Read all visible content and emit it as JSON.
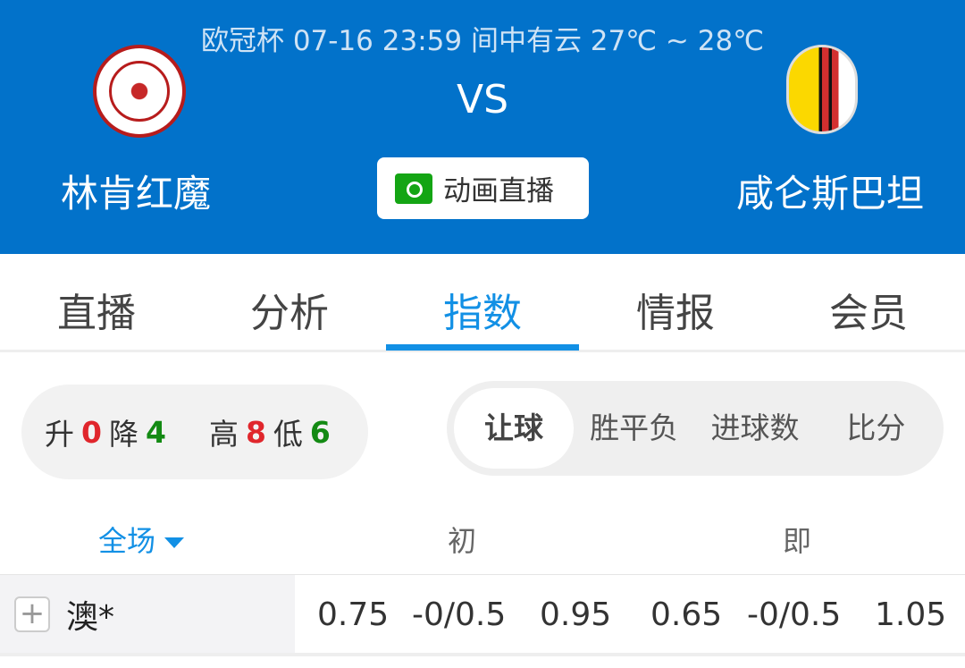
{
  "match": {
    "info": "欧冠杯 07-16 23:59 间中有云 27℃ ~ 28℃",
    "vs": "VS",
    "home_team": "林肯红魔",
    "away_team": "咸仑斯巴坦",
    "live_button": "动画直播"
  },
  "tabs": [
    {
      "label": "直播"
    },
    {
      "label": "分析"
    },
    {
      "label": "指数",
      "active": true
    },
    {
      "label": "情报"
    },
    {
      "label": "会员"
    }
  ],
  "stats": {
    "up_label": "升",
    "up": "0",
    "down_label": "降",
    "down": "4",
    "high_label": "高",
    "high": "8",
    "low_label": "低",
    "low": "6"
  },
  "segments": [
    {
      "label": "让球",
      "active": true
    },
    {
      "label": "胜平负"
    },
    {
      "label": "进球数"
    },
    {
      "label": "比分"
    }
  ],
  "columns": {
    "period": "全场",
    "initial": "初",
    "live": "即"
  },
  "rows": [
    {
      "company": "澳*",
      "initial": [
        "0.75",
        "-0/0.5",
        "0.95"
      ],
      "live": [
        "0.65",
        "-0/0.5",
        "1.05"
      ]
    }
  ],
  "colors": {
    "brand": "#0272ca",
    "accent": "#1290e5",
    "up": "#e0262c",
    "down": "#138a13"
  }
}
